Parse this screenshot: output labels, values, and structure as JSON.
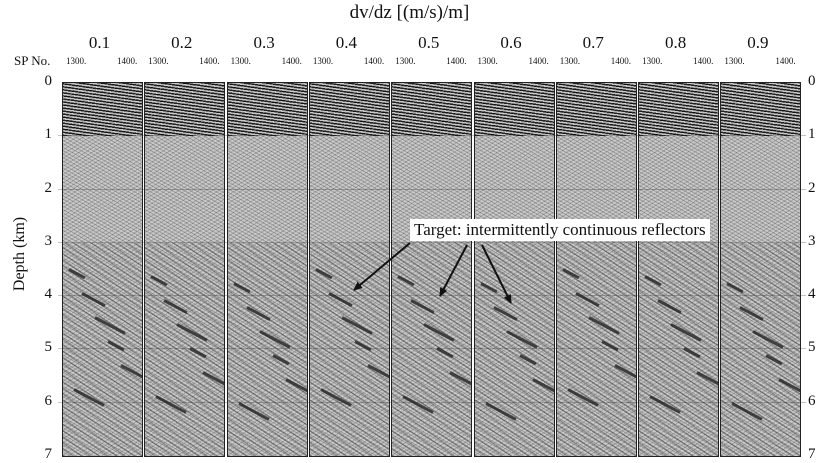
{
  "figure": {
    "top_axis_title": "dv/dz [(m/s)/m]",
    "sp_label": "SP No.",
    "sp_tick_left": "1300.",
    "sp_tick_right": "1400.",
    "y_axis_title": "Depth (km)",
    "annotation": "Target: intermittently continuous reflectors"
  },
  "panels": [
    {
      "dvdz": "0.1"
    },
    {
      "dvdz": "0.2"
    },
    {
      "dvdz": "0.3"
    },
    {
      "dvdz": "0.4"
    },
    {
      "dvdz": "0.5"
    },
    {
      "dvdz": "0.6"
    },
    {
      "dvdz": "0.7"
    },
    {
      "dvdz": "0.8"
    },
    {
      "dvdz": "0.9"
    }
  ],
  "depth_ticks": [
    "0",
    "1",
    "2",
    "3",
    "4",
    "5",
    "6",
    "7"
  ],
  "colors": {
    "background": "#ffffff",
    "seismic_gray": "#bdbdbd",
    "shallow_noise": "#6a6a6a",
    "arrow": "#111111"
  }
}
